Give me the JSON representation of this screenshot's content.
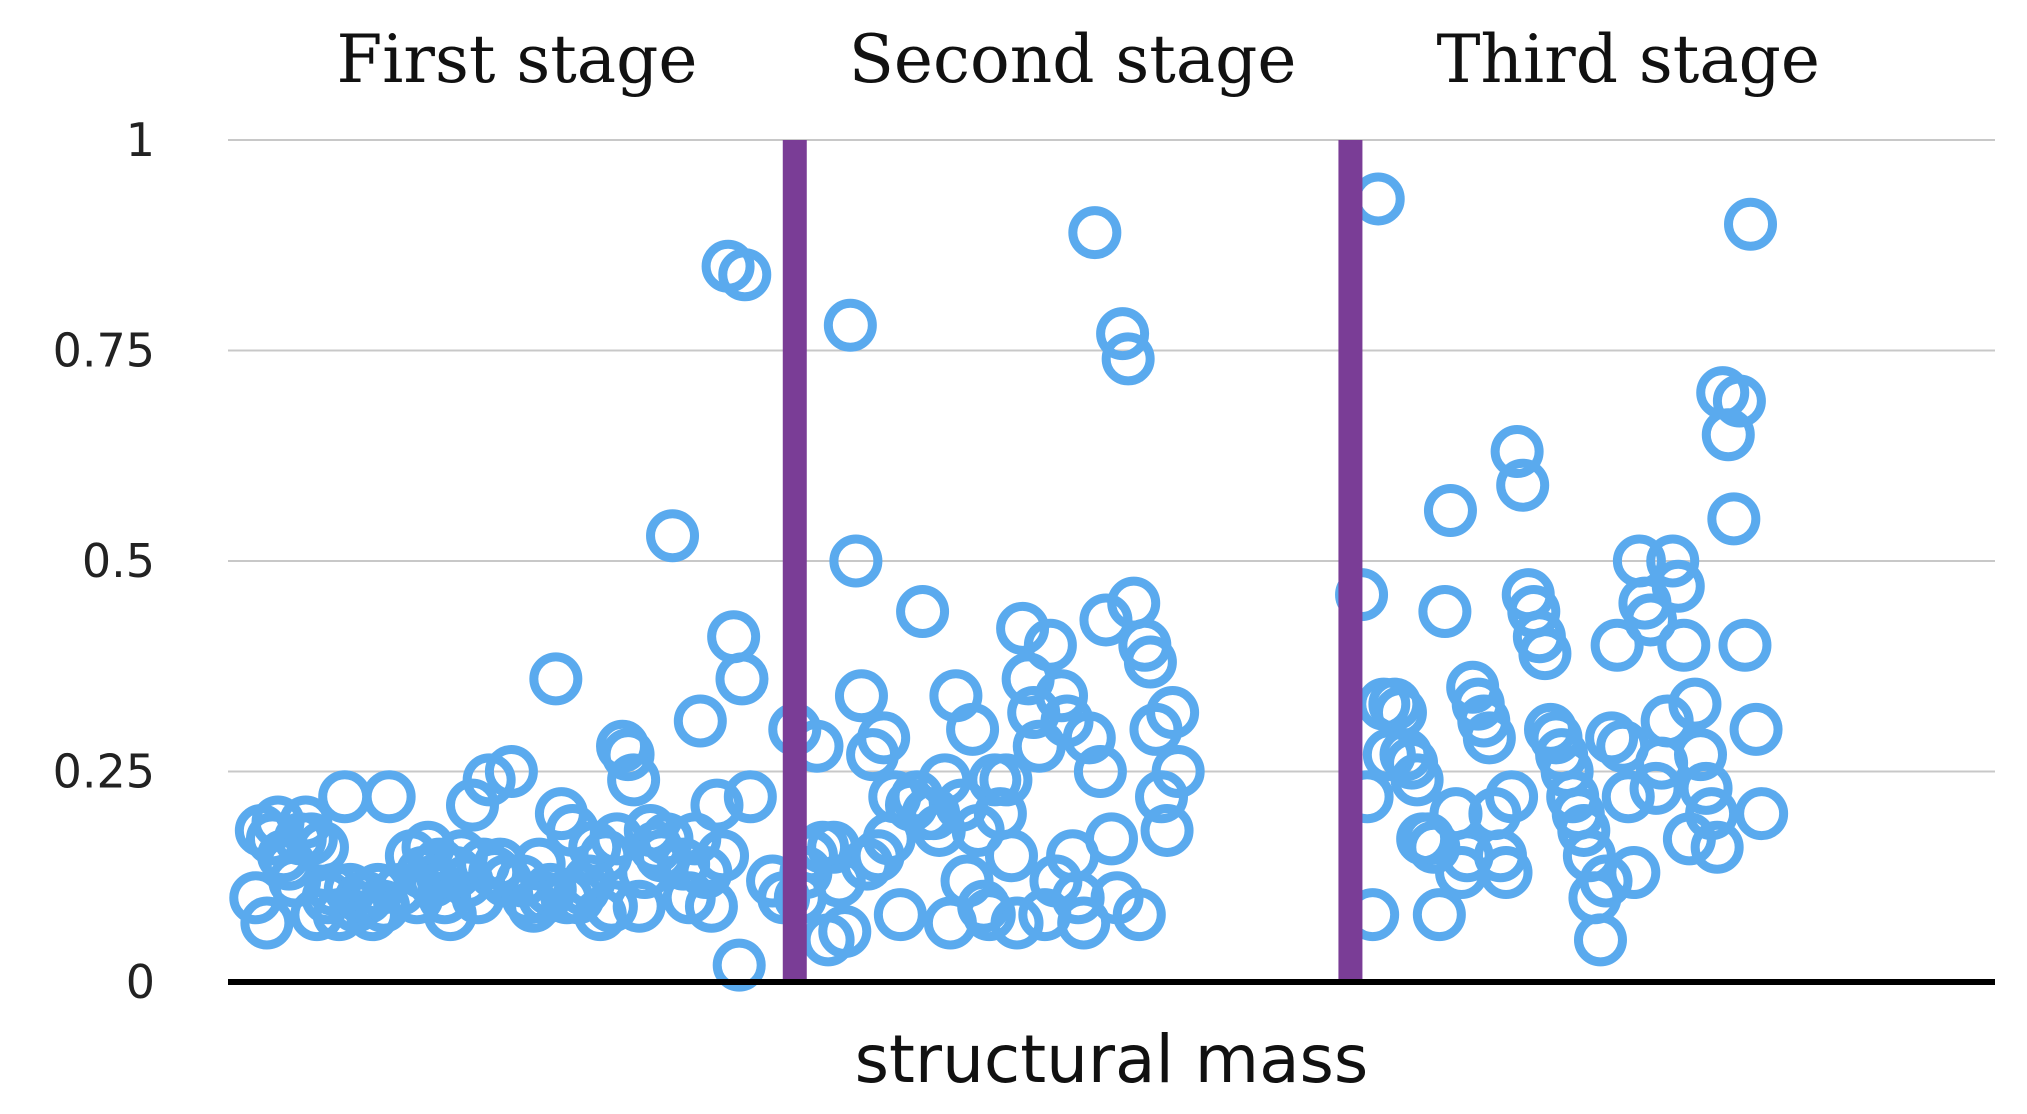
{
  "chart_data": {
    "type": "scatter",
    "title": "",
    "xlabel": "structural mass",
    "ylabel": "",
    "ylim": [
      0,
      1
    ],
    "yticks": [
      {
        "value": 0,
        "label": "0"
      },
      {
        "value": 0.25,
        "label": "0.25"
      },
      {
        "value": 0.5,
        "label": "0.5"
      },
      {
        "value": 0.75,
        "label": "0.75"
      },
      {
        "value": 1,
        "label": "1"
      }
    ],
    "grid": true,
    "colors": {
      "marker": "#5aaaee",
      "divider": "#7a3d96",
      "baseline": "#000000",
      "grid": "#c8c8c8"
    },
    "stages": [
      {
        "name": "First stage",
        "x_start": 0,
        "x_end": 100
      },
      {
        "name": "Second stage",
        "x_start": 100,
        "x_end": 200
      },
      {
        "name": "Third stage",
        "x_start": 200,
        "x_end": 300
      }
    ],
    "dividers": [
      100,
      200
    ],
    "x_range": [
      -2,
      316
    ],
    "series": [
      {
        "name": "structural mass",
        "points": [
          [
            3,
            0.1
          ],
          [
            4,
            0.18
          ],
          [
            5,
            0.07
          ],
          [
            6,
            0.17
          ],
          [
            7,
            0.19
          ],
          [
            8,
            0.15
          ],
          [
            9,
            0.14
          ],
          [
            10,
            0.12
          ],
          [
            11,
            0.17
          ],
          [
            12,
            0.19
          ],
          [
            13,
            0.17
          ],
          [
            14,
            0.08
          ],
          [
            15,
            0.16
          ],
          [
            16,
            0.1
          ],
          [
            17,
            0.11
          ],
          [
            18,
            0.08
          ],
          [
            19,
            0.22
          ],
          [
            20,
            0.11
          ],
          [
            21,
            0.09
          ],
          [
            22,
            0.1
          ],
          [
            23,
            0.1
          ],
          [
            24,
            0.08
          ],
          [
            25,
            0.11
          ],
          [
            26,
            0.09
          ],
          [
            27,
            0.22
          ],
          [
            29,
            0.11
          ],
          [
            31,
            0.15
          ],
          [
            32,
            0.1
          ],
          [
            33,
            0.13
          ],
          [
            34,
            0.16
          ],
          [
            35,
            0.12
          ],
          [
            36,
            0.14
          ],
          [
            37,
            0.1
          ],
          [
            38,
            0.08
          ],
          [
            39,
            0.13
          ],
          [
            40,
            0.15
          ],
          [
            41,
            0.12
          ],
          [
            42,
            0.21
          ],
          [
            43,
            0.1
          ],
          [
            44,
            0.14
          ],
          [
            45,
            0.24
          ],
          [
            46,
            0.13
          ],
          [
            47,
            0.14
          ],
          [
            48,
            0.12
          ],
          [
            49,
            0.25
          ],
          [
            51,
            0.12
          ],
          [
            52,
            0.1
          ],
          [
            53,
            0.09
          ],
          [
            54,
            0.14
          ],
          [
            55,
            0.1
          ],
          [
            56,
            0.11
          ],
          [
            57,
            0.36
          ],
          [
            58,
            0.2
          ],
          [
            59,
            0.1
          ],
          [
            60,
            0.18
          ],
          [
            61,
            0.1
          ],
          [
            62,
            0.11
          ],
          [
            63,
            0.12
          ],
          [
            64,
            0.16
          ],
          [
            65,
            0.08
          ],
          [
            66,
            0.15
          ],
          [
            67,
            0.09
          ],
          [
            68,
            0.17
          ],
          [
            69,
            0.28
          ],
          [
            70,
            0.27
          ],
          [
            71,
            0.24
          ],
          [
            72,
            0.09
          ],
          [
            73,
            0.13
          ],
          [
            74,
            0.18
          ],
          [
            75,
            0.16
          ],
          [
            76,
            0.15
          ],
          [
            77,
            0.17
          ],
          [
            78,
            0.53
          ],
          [
            80,
            0.14
          ],
          [
            81,
            0.1
          ],
          [
            82,
            0.17
          ],
          [
            83,
            0.31
          ],
          [
            84,
            0.13
          ],
          [
            85,
            0.09
          ],
          [
            86,
            0.21
          ],
          [
            87,
            0.15
          ],
          [
            88,
            0.85
          ],
          [
            89,
            0.41
          ],
          [
            90,
            0.02
          ],
          [
            90.5,
            0.36
          ],
          [
            91,
            0.84
          ],
          [
            92,
            0.22
          ],
          [
            96,
            0.12
          ],
          [
            98,
            0.1
          ],
          [
            100,
            0.3
          ],
          [
            101,
            0.1
          ],
          [
            102,
            0.13
          ],
          [
            103,
            0.15
          ],
          [
            104,
            0.28
          ],
          [
            105,
            0.16
          ],
          [
            106,
            0.05
          ],
          [
            107,
            0.16
          ],
          [
            108,
            0.12
          ],
          [
            109,
            0.06
          ],
          [
            110,
            0.78
          ],
          [
            111,
            0.5
          ],
          [
            112,
            0.34
          ],
          [
            113,
            0.14
          ],
          [
            114,
            0.27
          ],
          [
            115,
            0.15
          ],
          [
            116,
            0.29
          ],
          [
            117,
            0.17
          ],
          [
            118,
            0.22
          ],
          [
            119,
            0.08
          ],
          [
            121,
            0.21
          ],
          [
            122,
            0.22
          ],
          [
            123,
            0.44
          ],
          [
            124,
            0.2
          ],
          [
            125,
            0.2
          ],
          [
            126,
            0.18
          ],
          [
            127,
            0.24
          ],
          [
            128,
            0.07
          ],
          [
            129,
            0.34
          ],
          [
            130,
            0.21
          ],
          [
            131,
            0.12
          ],
          [
            132,
            0.3
          ],
          [
            133,
            0.18
          ],
          [
            134,
            0.09
          ],
          [
            135,
            0.08
          ],
          [
            136,
            0.24
          ],
          [
            137,
            0.2
          ],
          [
            138,
            0.24
          ],
          [
            139,
            0.15
          ],
          [
            140,
            0.07
          ],
          [
            141,
            0.42
          ],
          [
            142,
            0.36
          ],
          [
            143,
            0.32
          ],
          [
            144,
            0.28
          ],
          [
            145,
            0.08
          ],
          [
            146,
            0.4
          ],
          [
            147,
            0.12
          ],
          [
            148,
            0.34
          ],
          [
            149,
            0.31
          ],
          [
            150,
            0.15
          ],
          [
            151,
            0.1
          ],
          [
            152,
            0.07
          ],
          [
            153,
            0.29
          ],
          [
            154,
            0.89
          ],
          [
            155,
            0.25
          ],
          [
            156,
            0.43
          ],
          [
            157,
            0.17
          ],
          [
            158,
            0.1
          ],
          [
            159,
            0.77
          ],
          [
            160,
            0.74
          ],
          [
            161,
            0.45
          ],
          [
            162,
            0.08
          ],
          [
            163,
            0.4
          ],
          [
            164,
            0.38
          ],
          [
            165,
            0.3
          ],
          [
            166,
            0.22
          ],
          [
            167,
            0.18
          ],
          [
            168,
            0.32
          ],
          [
            169,
            0.25
          ],
          [
            202,
            0.46
          ],
          [
            203,
            0.22
          ],
          [
            204,
            0.08
          ],
          [
            205,
            0.93
          ],
          [
            206,
            0.33
          ],
          [
            207,
            0.27
          ],
          [
            208,
            0.33
          ],
          [
            209,
            0.32
          ],
          [
            210,
            0.27
          ],
          [
            211,
            0.26
          ],
          [
            212,
            0.24
          ],
          [
            213,
            0.17
          ],
          [
            214,
            0.17
          ],
          [
            215,
            0.16
          ],
          [
            216,
            0.08
          ],
          [
            217,
            0.44
          ],
          [
            218,
            0.56
          ],
          [
            219,
            0.2
          ],
          [
            220,
            0.13
          ],
          [
            221,
            0.15
          ],
          [
            222,
            0.35
          ],
          [
            223,
            0.33
          ],
          [
            224,
            0.31
          ],
          [
            225,
            0.29
          ],
          [
            226,
            0.2
          ],
          [
            227,
            0.15
          ],
          [
            228,
            0.13
          ],
          [
            229,
            0.22
          ],
          [
            230,
            0.63
          ],
          [
            231,
            0.59
          ],
          [
            232,
            0.46
          ],
          [
            233,
            0.44
          ],
          [
            234,
            0.41
          ],
          [
            235,
            0.39
          ],
          [
            236,
            0.3
          ],
          [
            237,
            0.29
          ],
          [
            238,
            0.27
          ],
          [
            239,
            0.25
          ],
          [
            240,
            0.22
          ],
          [
            241,
            0.2
          ],
          [
            242,
            0.18
          ],
          [
            243,
            0.15
          ],
          [
            244,
            0.1
          ],
          [
            245,
            0.05
          ],
          [
            246,
            0.12
          ],
          [
            247,
            0.29
          ],
          [
            248,
            0.4
          ],
          [
            249,
            0.28
          ],
          [
            250,
            0.22
          ],
          [
            251,
            0.13
          ],
          [
            252,
            0.5
          ],
          [
            253,
            0.45
          ],
          [
            254,
            0.43
          ],
          [
            255,
            0.23
          ],
          [
            256,
            0.26
          ],
          [
            257,
            0.31
          ],
          [
            258,
            0.5
          ],
          [
            259,
            0.47
          ],
          [
            260,
            0.4
          ],
          [
            261,
            0.17
          ],
          [
            262,
            0.33
          ],
          [
            263,
            0.27
          ],
          [
            264,
            0.23
          ],
          [
            265,
            0.2
          ],
          [
            266,
            0.16
          ],
          [
            267,
            0.7
          ],
          [
            268,
            0.65
          ],
          [
            269,
            0.55
          ],
          [
            270,
            0.69
          ],
          [
            271,
            0.4
          ],
          [
            272,
            0.9
          ],
          [
            273,
            0.3
          ],
          [
            274,
            0.2
          ]
        ]
      }
    ]
  }
}
